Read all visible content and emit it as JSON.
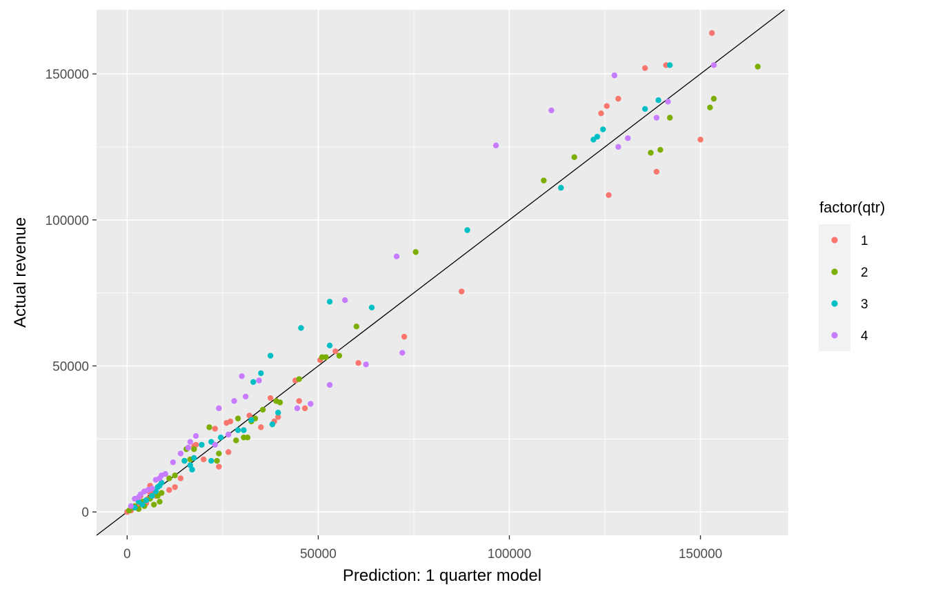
{
  "chart_data": {
    "type": "scatter",
    "title": "",
    "xlabel": "Prediction: 1 quarter model",
    "ylabel": "Actual revenue",
    "xlim": [
      -8000,
      173000
    ],
    "ylim": [
      -8000,
      172000
    ],
    "xticks": [
      0,
      50000,
      100000,
      150000
    ],
    "yticks": [
      0,
      50000,
      100000,
      150000
    ],
    "xtick_labels": [
      "0",
      "50000",
      "100000",
      "150000"
    ],
    "ytick_labels": [
      "0",
      "50000",
      "100000",
      "150000"
    ],
    "grid": true,
    "background": "#EBEBEB",
    "reference_line": {
      "type": "identity",
      "slope": 1,
      "intercept": 0,
      "color": "#000000"
    },
    "legend": {
      "title": "factor(qtr)",
      "position": "right"
    },
    "series": [
      {
        "name": "1",
        "color": "#F8766D",
        "points": [
          [
            153000,
            164000
          ],
          [
            141000,
            153000
          ],
          [
            135500,
            152000
          ],
          [
            128500,
            141500
          ],
          [
            125500,
            139000
          ],
          [
            124000,
            136500
          ],
          [
            150000,
            127500
          ],
          [
            138500,
            116500
          ],
          [
            126000,
            108500
          ],
          [
            87500,
            75500
          ],
          [
            72500,
            60000
          ],
          [
            60500,
            51000
          ],
          [
            54500,
            55000
          ],
          [
            50500,
            52000
          ],
          [
            44000,
            45000
          ],
          [
            45000,
            38000
          ],
          [
            46500,
            35500
          ],
          [
            37500,
            39000
          ],
          [
            39500,
            32500
          ],
          [
            38500,
            31000
          ],
          [
            35000,
            29000
          ],
          [
            32000,
            33000
          ],
          [
            27000,
            31000
          ],
          [
            26000,
            30500
          ],
          [
            23000,
            28500
          ],
          [
            26500,
            20500
          ],
          [
            24000,
            15500
          ],
          [
            20000,
            18000
          ],
          [
            18000,
            23000
          ],
          [
            17500,
            22500
          ],
          [
            14000,
            11500
          ],
          [
            12500,
            8500
          ],
          [
            11000,
            7500
          ],
          [
            7500,
            5500
          ],
          [
            6000,
            9000
          ],
          [
            6000,
            6500
          ],
          [
            5500,
            4500
          ],
          [
            5000,
            3000
          ],
          [
            4500,
            7000
          ],
          [
            3500,
            5500
          ],
          [
            3000,
            2500
          ],
          [
            2000,
            1500
          ],
          [
            1000,
            500
          ],
          [
            0,
            0
          ]
        ]
      },
      {
        "name": "2",
        "color": "#7CAE00",
        "points": [
          [
            165000,
            152500
          ],
          [
            153500,
            141500
          ],
          [
            152500,
            138500
          ],
          [
            142000,
            135000
          ],
          [
            139500,
            124000
          ],
          [
            137000,
            123000
          ],
          [
            117000,
            121500
          ],
          [
            109000,
            113500
          ],
          [
            75500,
            89000
          ],
          [
            60000,
            63500
          ],
          [
            55500,
            53500
          ],
          [
            52000,
            53000
          ],
          [
            51000,
            53000
          ],
          [
            45000,
            45500
          ],
          [
            40000,
            37500
          ],
          [
            39000,
            38000
          ],
          [
            35500,
            35000
          ],
          [
            33500,
            32000
          ],
          [
            32500,
            31000
          ],
          [
            31500,
            25500
          ],
          [
            30500,
            25500
          ],
          [
            29000,
            32000
          ],
          [
            28500,
            24500
          ],
          [
            24000,
            20000
          ],
          [
            23500,
            17500
          ],
          [
            21500,
            29000
          ],
          [
            17500,
            21500
          ],
          [
            16500,
            18000
          ],
          [
            15500,
            21500
          ],
          [
            15000,
            17500
          ],
          [
            12500,
            12500
          ],
          [
            11000,
            11500
          ],
          [
            9000,
            6500
          ],
          [
            8500,
            3500
          ],
          [
            8000,
            5500
          ],
          [
            7000,
            2500
          ],
          [
            6000,
            4500
          ],
          [
            4500,
            2000
          ],
          [
            4000,
            3500
          ],
          [
            3000,
            1000
          ],
          [
            2000,
            2000
          ],
          [
            1500,
            1500
          ],
          [
            500,
            500
          ]
        ]
      },
      {
        "name": "3",
        "color": "#00BFC4",
        "points": [
          [
            142000,
            153000
          ],
          [
            139000,
            141000
          ],
          [
            135500,
            138000
          ],
          [
            124500,
            131000
          ],
          [
            123000,
            128500
          ],
          [
            122000,
            127500
          ],
          [
            113500,
            111000
          ],
          [
            89000,
            96500
          ],
          [
            64000,
            70000
          ],
          [
            53000,
            72000
          ],
          [
            53000,
            57000
          ],
          [
            45500,
            63000
          ],
          [
            37500,
            53500
          ],
          [
            35000,
            47500
          ],
          [
            33000,
            44500
          ],
          [
            39500,
            34000
          ],
          [
            38000,
            30000
          ],
          [
            32500,
            31500
          ],
          [
            30500,
            28000
          ],
          [
            29000,
            28000
          ],
          [
            24500,
            25500
          ],
          [
            22000,
            24000
          ],
          [
            22000,
            17500
          ],
          [
            19500,
            23000
          ],
          [
            17500,
            18500
          ],
          [
            17000,
            14500
          ],
          [
            16500,
            16000
          ],
          [
            15000,
            17500
          ],
          [
            9000,
            10000
          ],
          [
            8500,
            9000
          ],
          [
            8000,
            8500
          ],
          [
            7500,
            7000
          ],
          [
            6500,
            5500
          ],
          [
            5000,
            4000
          ],
          [
            4000,
            2500
          ],
          [
            3000,
            3500
          ],
          [
            2000,
            1500
          ]
        ]
      },
      {
        "name": "4",
        "color": "#C77CFF",
        "points": [
          [
            153500,
            153000
          ],
          [
            127500,
            149500
          ],
          [
            141500,
            140500
          ],
          [
            138500,
            135000
          ],
          [
            131000,
            128000
          ],
          [
            128500,
            125000
          ],
          [
            111000,
            137500
          ],
          [
            96500,
            125500
          ],
          [
            70500,
            87500
          ],
          [
            57000,
            72500
          ],
          [
            72000,
            54500
          ],
          [
            62500,
            50500
          ],
          [
            53000,
            43500
          ],
          [
            48000,
            37000
          ],
          [
            44500,
            35500
          ],
          [
            34500,
            45000
          ],
          [
            30000,
            46500
          ],
          [
            31000,
            39500
          ],
          [
            28000,
            38000
          ],
          [
            24000,
            35500
          ],
          [
            26500,
            26500
          ],
          [
            23000,
            23000
          ],
          [
            18000,
            26000
          ],
          [
            16500,
            24000
          ],
          [
            16000,
            22000
          ],
          [
            14000,
            20000
          ],
          [
            12000,
            17000
          ],
          [
            10000,
            13000
          ],
          [
            9000,
            12500
          ],
          [
            8500,
            11500
          ],
          [
            7500,
            11000
          ],
          [
            6500,
            8000
          ],
          [
            5500,
            7500
          ],
          [
            4500,
            7000
          ],
          [
            3500,
            6000
          ],
          [
            3000,
            5000
          ],
          [
            2000,
            4500
          ],
          [
            1000,
            2000
          ]
        ]
      }
    ]
  }
}
